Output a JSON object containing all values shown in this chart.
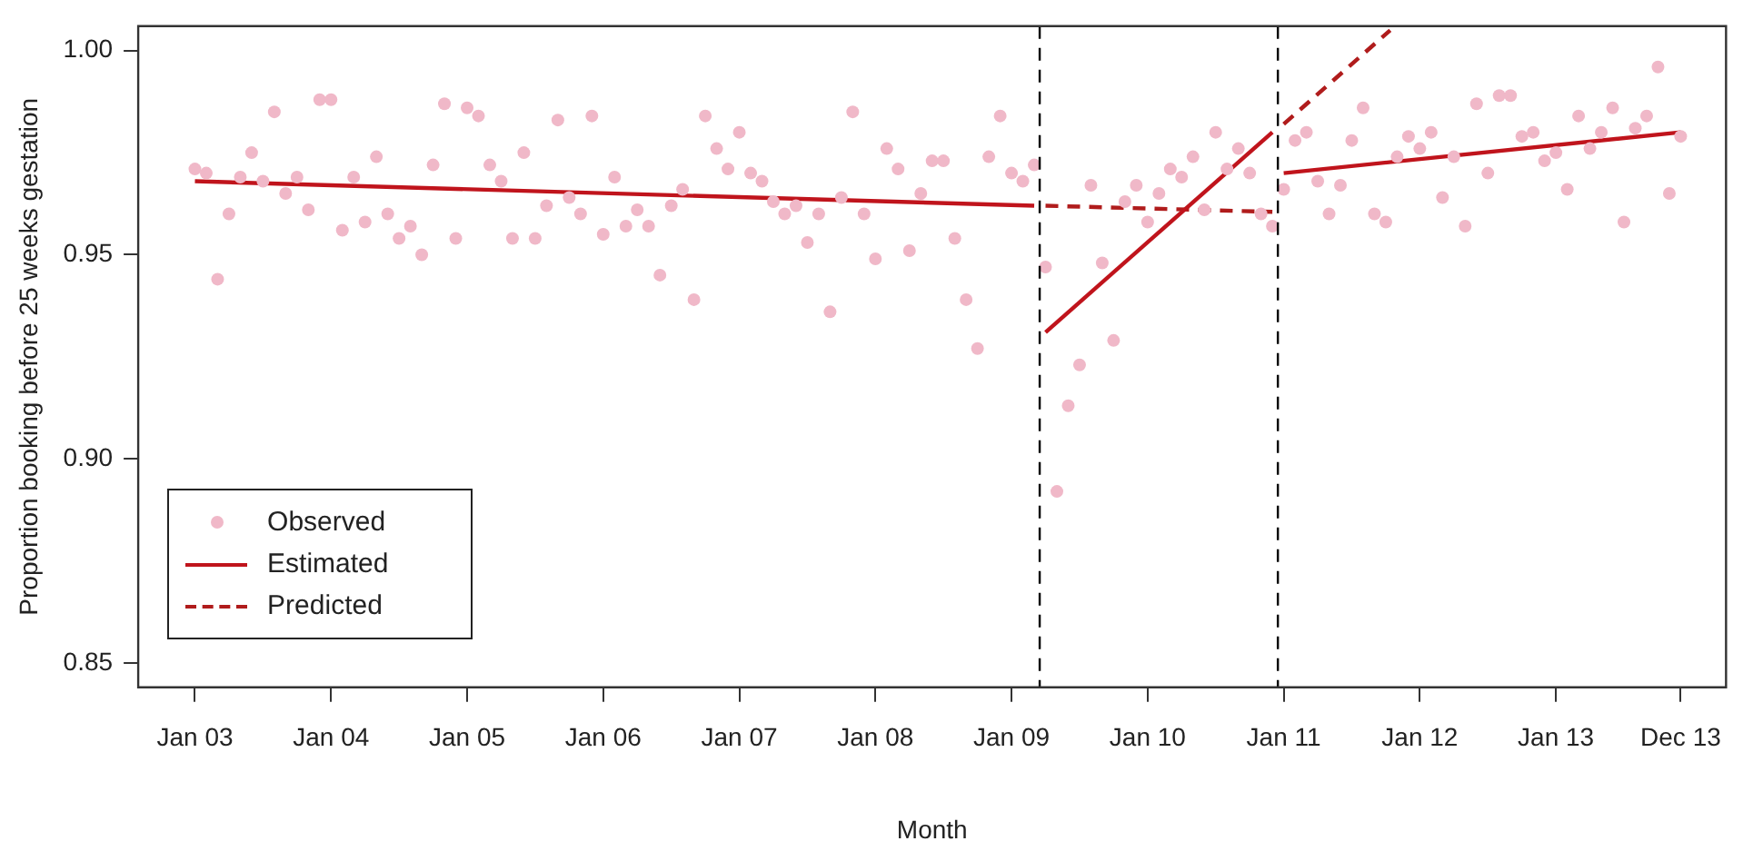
{
  "chart_data": {
    "type": "scatter",
    "xlabel": "Month",
    "ylabel": "Proportion booking before 25 weeks gestation",
    "xlim": [
      "2002-08",
      "2014-04"
    ],
    "ylim": [
      0.844,
      1.006
    ],
    "xticks": [
      {
        "value": "2003-01",
        "label": "Jan 03"
      },
      {
        "value": "2004-01",
        "label": "Jan 04"
      },
      {
        "value": "2005-01",
        "label": "Jan 05"
      },
      {
        "value": "2006-01",
        "label": "Jan 06"
      },
      {
        "value": "2007-01",
        "label": "Jan 07"
      },
      {
        "value": "2008-01",
        "label": "Jan 08"
      },
      {
        "value": "2009-01",
        "label": "Jan 09"
      },
      {
        "value": "2010-01",
        "label": "Jan 10"
      },
      {
        "value": "2011-01",
        "label": "Jan 11"
      },
      {
        "value": "2012-01",
        "label": "Jan 12"
      },
      {
        "value": "2013-01",
        "label": "Jan 13"
      },
      {
        "value": "2013-12",
        "label": "Dec 13"
      }
    ],
    "yticks": [
      0.85,
      {
        "value": 0.9,
        "label": "0.90"
      },
      0.95,
      {
        "value": 1,
        "label": "1.00"
      }
    ],
    "grid": false,
    "legend": "bottom left",
    "ref_lines": [
      {
        "axis": "x",
        "value": "2009-03-16",
        "color": "#000000",
        "line_style": "dashed"
      },
      {
        "axis": "x",
        "value": "2010-12-16",
        "color": "#000000",
        "line_style": "dashed"
      }
    ],
    "series": [
      {
        "name": "Observed",
        "marker": "circle",
        "color": "#f0b8c8",
        "x": [
          "2003-01",
          "2003-02",
          "2003-03",
          "2003-04",
          "2003-05",
          "2003-06",
          "2003-07",
          "2003-08",
          "2003-09",
          "2003-10",
          "2003-11",
          "2003-12",
          "2004-01",
          "2004-02",
          "2004-03",
          "2004-04",
          "2004-05",
          "2004-06",
          "2004-07",
          "2004-08",
          "2004-09",
          "2004-10",
          "2004-11",
          "2004-12",
          "2005-01",
          "2005-02",
          "2005-03",
          "2005-04",
          "2005-05",
          "2005-06",
          "2005-07",
          "2005-08",
          "2005-09",
          "2005-10",
          "2005-11",
          "2005-12",
          "2006-01",
          "2006-02",
          "2006-03",
          "2006-04",
          "2006-05",
          "2006-06",
          "2006-07",
          "2006-08",
          "2006-09",
          "2006-10",
          "2006-11",
          "2006-12",
          "2007-01",
          "2007-02",
          "2007-03",
          "2007-04",
          "2007-05",
          "2007-06",
          "2007-07",
          "2007-08",
          "2007-09",
          "2007-10",
          "2007-11",
          "2007-12",
          "2008-01",
          "2008-02",
          "2008-03",
          "2008-04",
          "2008-05",
          "2008-06",
          "2008-07",
          "2008-08",
          "2008-09",
          "2008-10",
          "2008-11",
          "2008-12",
          "2009-01",
          "2009-02",
          "2009-03",
          "2009-04",
          "2009-05",
          "2009-06",
          "2009-07",
          "2009-08",
          "2009-09",
          "2009-10",
          "2009-11",
          "2009-12",
          "2010-01",
          "2010-02",
          "2010-03",
          "2010-04",
          "2010-05",
          "2010-06",
          "2010-07",
          "2010-08",
          "2010-09",
          "2010-10",
          "2010-11",
          "2010-12",
          "2011-01",
          "2011-02",
          "2011-03",
          "2011-04",
          "2011-05",
          "2011-06",
          "2011-07",
          "2011-08",
          "2011-09",
          "2011-10",
          "2011-11",
          "2011-12",
          "2012-01",
          "2012-02",
          "2012-03",
          "2012-04",
          "2012-05",
          "2012-06",
          "2012-07",
          "2012-08",
          "2012-09",
          "2012-10",
          "2012-11",
          "2012-12",
          "2013-01",
          "2013-02",
          "2013-03",
          "2013-04",
          "2013-05",
          "2013-06",
          "2013-07",
          "2013-08",
          "2013-09",
          "2013-10",
          "2013-11",
          "2013-12"
        ],
        "values": [
          0.971,
          0.97,
          0.944,
          0.96,
          0.969,
          0.975,
          0.968,
          0.985,
          0.965,
          0.969,
          0.961,
          0.988,
          0.988,
          0.956,
          0.969,
          0.958,
          0.974,
          0.96,
          0.954,
          0.957,
          0.95,
          0.972,
          0.987,
          0.954,
          0.986,
          0.984,
          0.972,
          0.968,
          0.954,
          0.975,
          0.954,
          0.962,
          0.983,
          0.964,
          0.96,
          0.984,
          0.955,
          0.969,
          0.957,
          0.961,
          0.957,
          0.945,
          0.962,
          0.966,
          0.939,
          0.984,
          0.976,
          0.971,
          0.98,
          0.97,
          0.968,
          0.963,
          0.96,
          0.962,
          0.953,
          0.96,
          0.936,
          0.964,
          0.985,
          0.96,
          0.949,
          0.976,
          0.971,
          0.951,
          0.965,
          0.973,
          0.973,
          0.954,
          0.939,
          0.927,
          0.974,
          0.984,
          0.97,
          0.968,
          0.972,
          0.947,
          0.892,
          0.913,
          0.923,
          0.967,
          0.948,
          0.929,
          0.963,
          0.967,
          0.958,
          0.965,
          0.971,
          0.969,
          0.974,
          0.961,
          0.98,
          0.971,
          0.976,
          0.97,
          0.96,
          0.957,
          0.966,
          0.978,
          0.98,
          0.968,
          0.96,
          0.967,
          0.978,
          0.986,
          0.96,
          0.958,
          0.974,
          0.979,
          0.976,
          0.98,
          0.964,
          0.974,
          0.957,
          0.987,
          0.97,
          0.989,
          0.989,
          0.979,
          0.98,
          0.973,
          0.975,
          0.966,
          0.984,
          0.976,
          0.98,
          0.986,
          0.958,
          0.981,
          0.984,
          0.996,
          0.965,
          0.979
        ]
      },
      {
        "name": "Estimated",
        "type": "line",
        "marker": "none",
        "line_style": "solid",
        "color": "#c0141c",
        "x": [
          "2003-01",
          "2009-03"
        ],
        "values": [
          0.968,
          0.962
        ]
      },
      {
        "type": "line",
        "marker": "none",
        "line_style": "solid",
        "color": "#c0141c",
        "x": [
          "2009-04",
          "2010-12"
        ],
        "values": [
          0.931,
          0.98
        ]
      },
      {
        "type": "line",
        "marker": "none",
        "line_style": "solid",
        "color": "#c0141c",
        "x": [
          "2011-01",
          "2013-12"
        ],
        "values": [
          0.97,
          0.98
        ]
      },
      {
        "name": "Predicted",
        "type": "line",
        "marker": "none",
        "line_style": "dashed",
        "color": "#b01c1c",
        "x": [
          "2009-04",
          "2010-12"
        ],
        "values": [
          0.962,
          0.9605
        ]
      },
      {
        "type": "line",
        "marker": "none",
        "line_style": "dashed",
        "color": "#b01c1c",
        "x": [
          "2011-01",
          "2011-10-13"
        ],
        "values": [
          0.982,
          1.005
        ]
      }
    ]
  }
}
